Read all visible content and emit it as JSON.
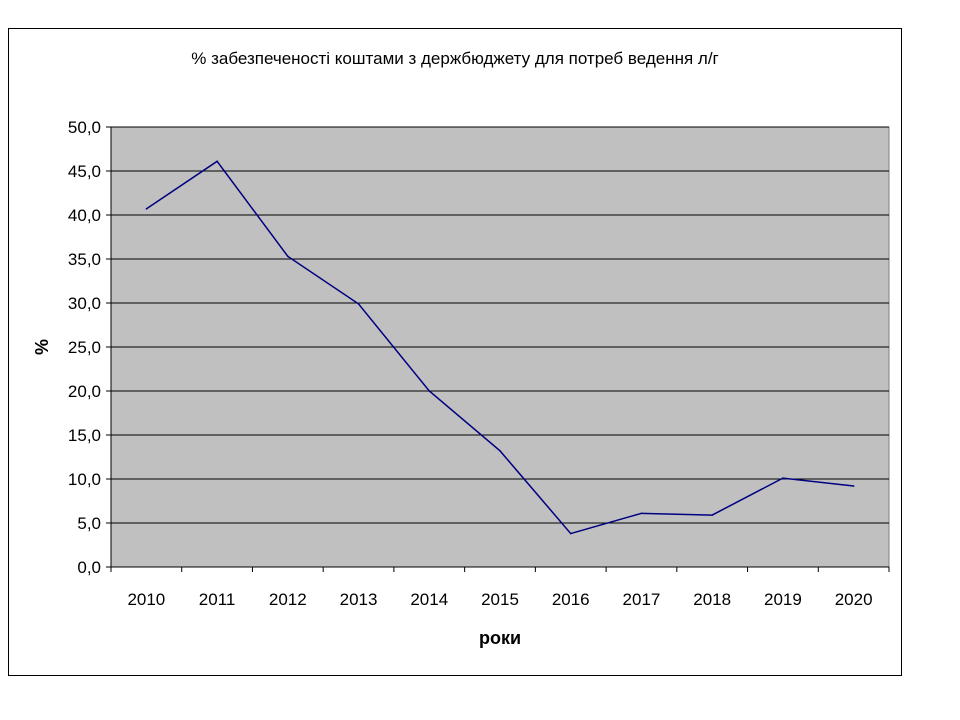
{
  "chart_data": {
    "type": "line",
    "title": "% забезпеченості коштами з держбюджету для потреб ведення л/г",
    "xlabel": "роки",
    "ylabel": "%",
    "categories": [
      "2010",
      "2011",
      "2012",
      "2013",
      "2014",
      "2015",
      "2016",
      "2017",
      "2018",
      "2019",
      "2020"
    ],
    "series": [
      {
        "values": [
          40.7,
          46.1,
          35.3,
          29.9,
          20.0,
          13.2,
          3.8,
          6.1,
          5.9,
          10.1,
          9.2
        ],
        "color": "#000080"
      }
    ],
    "ylim": [
      0,
      50
    ],
    "yticks": [
      0,
      5,
      10,
      15,
      20,
      25,
      30,
      35,
      40,
      45,
      50
    ],
    "ytick_labels": [
      "0,0",
      "5,0",
      "10,0",
      "15,0",
      "20,0",
      "25,0",
      "30,0",
      "35,0",
      "40,0",
      "45,0",
      "50,0"
    ],
    "grid": true,
    "plot_background": "#c0c0c0",
    "gridline_color": "#000000",
    "legend": "none"
  }
}
